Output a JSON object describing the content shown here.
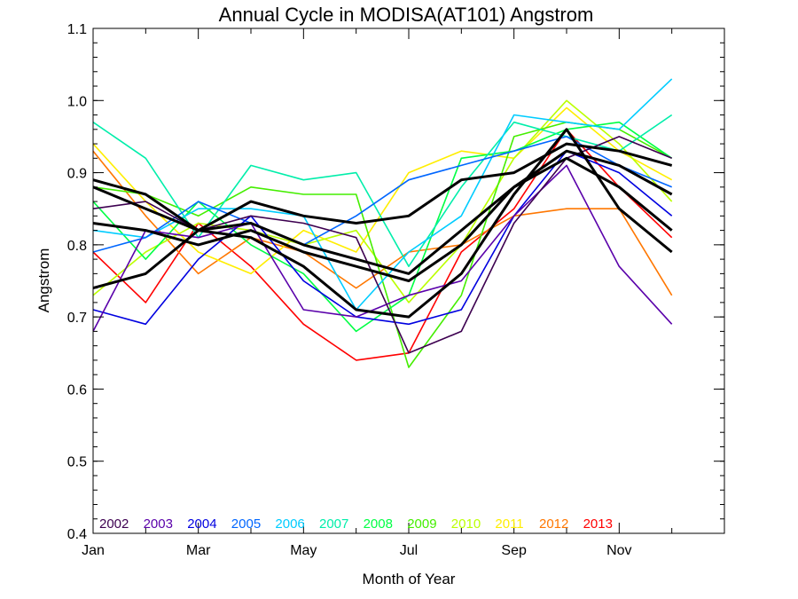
{
  "chart_data": {
    "type": "line",
    "title": "Annual Cycle in MODISA(AT101) Angstrom",
    "xlabel": "Month of Year",
    "ylabel": "Angstrom",
    "xlim": [
      1,
      13
    ],
    "ylim": [
      0.4,
      1.1
    ],
    "x_ticks": [
      1,
      3,
      5,
      7,
      9,
      11
    ],
    "x_tick_labels": [
      "Jan",
      "Mar",
      "May",
      "Jul",
      "Sep",
      "Nov"
    ],
    "y_ticks": [
      0.4,
      0.5,
      0.6,
      0.7,
      0.8,
      0.9,
      1.0,
      1.1
    ],
    "y_tick_labels": [
      "0.4",
      "0.5",
      "0.6",
      "0.7",
      "0.8",
      "0.9",
      "1.0",
      "1.1"
    ],
    "grid": false,
    "legend_placement": "bottom-left inside plot",
    "x": [
      1,
      2,
      3,
      4,
      5,
      6,
      7,
      8,
      9,
      10,
      11,
      12
    ],
    "series": [
      {
        "name": "2002",
        "color": "#3d0050",
        "values": [
          0.85,
          0.86,
          0.82,
          0.84,
          0.83,
          0.81,
          0.65,
          0.68,
          0.83,
          0.92,
          0.95,
          0.92
        ]
      },
      {
        "name": "2003",
        "color": "#5a00aa",
        "values": [
          0.68,
          0.82,
          0.81,
          0.83,
          0.71,
          0.7,
          0.73,
          0.75,
          0.84,
          0.91,
          0.77,
          0.69
        ]
      },
      {
        "name": "2004",
        "color": "#0000e0",
        "values": [
          0.71,
          0.69,
          0.78,
          0.84,
          0.75,
          0.7,
          0.69,
          0.71,
          0.84,
          0.93,
          0.9,
          0.84
        ]
      },
      {
        "name": "2005",
        "color": "#0066ff",
        "values": [
          0.79,
          0.81,
          0.86,
          0.83,
          0.8,
          0.84,
          0.89,
          0.91,
          0.93,
          0.95,
          0.91,
          0.88
        ]
      },
      {
        "name": "2006",
        "color": "#00ccff",
        "values": [
          0.82,
          0.81,
          0.85,
          0.85,
          0.84,
          0.71,
          0.79,
          0.84,
          0.98,
          0.97,
          0.96,
          1.03
        ]
      },
      {
        "name": "2007",
        "color": "#00eeaa",
        "values": [
          0.97,
          0.92,
          0.81,
          0.91,
          0.89,
          0.9,
          0.77,
          0.88,
          0.97,
          0.95,
          0.93,
          0.98
        ]
      },
      {
        "name": "2008",
        "color": "#00ff44",
        "values": [
          0.86,
          0.78,
          0.86,
          0.8,
          0.76,
          0.68,
          0.73,
          0.92,
          0.93,
          0.96,
          0.97,
          0.92
        ]
      },
      {
        "name": "2009",
        "color": "#44ee00",
        "values": [
          0.88,
          0.87,
          0.84,
          0.88,
          0.87,
          0.87,
          0.63,
          0.73,
          0.95,
          0.97,
          0.96,
          0.92
        ]
      },
      {
        "name": "2010",
        "color": "#bbff00",
        "values": [
          0.73,
          0.79,
          0.83,
          0.82,
          0.8,
          0.82,
          0.72,
          0.8,
          0.92,
          1.0,
          0.94,
          0.86
        ]
      },
      {
        "name": "2011",
        "color": "#ffee00",
        "values": [
          0.94,
          0.86,
          0.79,
          0.76,
          0.82,
          0.79,
          0.9,
          0.93,
          0.92,
          0.99,
          0.93,
          0.89
        ]
      },
      {
        "name": "2012",
        "color": "#ff7700",
        "values": [
          0.93,
          0.84,
          0.76,
          0.81,
          0.79,
          0.74,
          0.79,
          0.8,
          0.84,
          0.85,
          0.85,
          0.73
        ]
      },
      {
        "name": "2013",
        "color": "#ff0000",
        "values": [
          0.79,
          0.72,
          0.83,
          0.77,
          0.69,
          0.64,
          0.65,
          0.79,
          0.85,
          0.96,
          0.88,
          0.81
        ]
      },
      {
        "color": "#000000",
        "values": [
          0.89,
          0.87,
          0.82,
          0.86,
          0.84,
          0.83,
          0.84,
          0.89,
          0.9,
          0.94,
          0.93,
          0.91
        ]
      },
      {
        "color": "#000000",
        "values": [
          0.88,
          0.85,
          0.82,
          0.83,
          0.8,
          0.78,
          0.76,
          0.82,
          0.88,
          0.93,
          0.91,
          0.87
        ]
      },
      {
        "color": "#000000",
        "values": [
          0.83,
          0.82,
          0.8,
          0.82,
          0.79,
          0.77,
          0.75,
          0.8,
          0.88,
          0.92,
          0.88,
          0.82
        ]
      },
      {
        "color": "#000000",
        "values": [
          0.74,
          0.76,
          0.82,
          0.81,
          0.77,
          0.71,
          0.7,
          0.76,
          0.87,
          0.96,
          0.85,
          0.79
        ]
      }
    ]
  }
}
